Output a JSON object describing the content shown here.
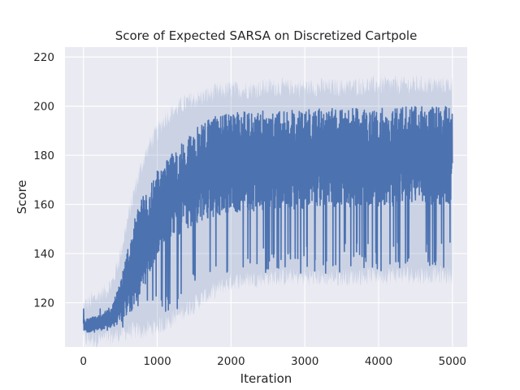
{
  "chart_data": {
    "type": "line",
    "title": "Score of Expected SARSA on Discretized Cartpole",
    "xlabel": "Iteration",
    "ylabel": "Score",
    "xlim": [
      -250,
      5200
    ],
    "ylim": [
      102,
      224
    ],
    "xticks": [
      0,
      1000,
      2000,
      3000,
      4000,
      5000
    ],
    "yticks": [
      120,
      140,
      160,
      180,
      200,
      220
    ],
    "grid": true,
    "style": "seaborn-darkgrid",
    "series": [
      {
        "color": "#4c72b0",
        "band_color": "#4c72b0",
        "band_opacity": 0.2,
        "x": [
          0,
          100,
          200,
          300,
          400,
          500,
          600,
          700,
          800,
          900,
          1000,
          1100,
          1200,
          1300,
          1400,
          1500,
          1600,
          1700,
          1800,
          2000,
          2200,
          2500,
          3000,
          3500,
          4000,
          4500,
          5000
        ],
        "mean": [
          110,
          110,
          110,
          111,
          113,
          118,
          128,
          138,
          146,
          153,
          158,
          162,
          165,
          167,
          169,
          172,
          174,
          175,
          176,
          177,
          178,
          179,
          179,
          180,
          180,
          181,
          181
        ],
        "line_low": [
          108,
          108,
          108,
          109,
          110,
          112,
          115,
          118,
          125,
          132,
          138,
          143,
          146,
          148,
          150,
          152,
          153,
          154,
          155,
          156,
          157,
          158,
          158,
          159,
          159,
          160,
          160
        ],
        "line_high": [
          113,
          114,
          115,
          117,
          120,
          128,
          142,
          155,
          163,
          170,
          174,
          178,
          181,
          184,
          187,
          190,
          193,
          195,
          196,
          197,
          198,
          198,
          199,
          199,
          199,
          200,
          200
        ],
        "band_low": [
          107,
          107,
          107,
          107,
          108,
          109,
          110,
          110,
          110,
          111,
          112,
          113,
          115,
          117,
          119,
          121,
          123,
          125,
          127,
          130,
          131,
          132,
          132,
          132,
          133,
          133,
          133
        ],
        "band_high": [
          117,
          119,
          121,
          123,
          127,
          138,
          152,
          165,
          175,
          183,
          188,
          193,
          196,
          198,
          200,
          201,
          202,
          203,
          204,
          205,
          205,
          206,
          206,
          206,
          207,
          207,
          207
        ]
      }
    ]
  }
}
